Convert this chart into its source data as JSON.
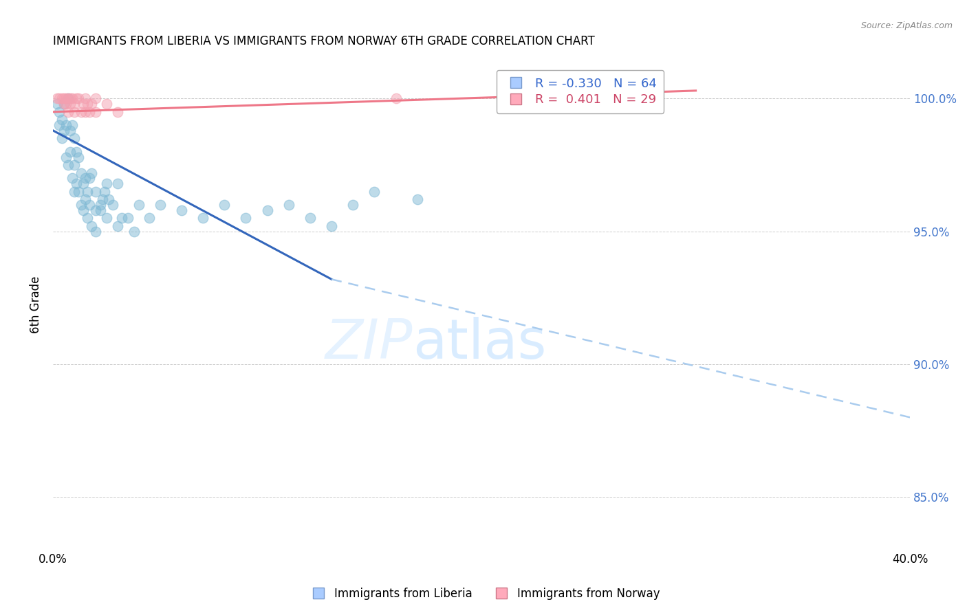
{
  "title": "IMMIGRANTS FROM LIBERIA VS IMMIGRANTS FROM NORWAY 6TH GRADE CORRELATION CHART",
  "source": "Source: ZipAtlas.com",
  "ylabel_left": "6th Grade",
  "xlim": [
    0.0,
    40.0
  ],
  "ylim": [
    83.0,
    101.5
  ],
  "yticks": [
    85.0,
    90.0,
    95.0,
    100.0
  ],
  "ytick_labels": [
    "85.0%",
    "90.0%",
    "95.0%",
    "100.0%"
  ],
  "xticks": [
    0.0,
    10.0,
    20.0,
    30.0,
    40.0
  ],
  "xtick_labels": [
    "0.0%",
    "",
    "",
    "",
    "40.0%"
  ],
  "liberia_color": "#7EB8D4",
  "norway_color": "#F4A0B0",
  "liberia_R": -0.33,
  "liberia_N": 64,
  "norway_R": 0.401,
  "norway_N": 29,
  "title_fontsize": 12,
  "axis_label_color": "#4477CC",
  "grid_color": "#CCCCCC",
  "legend_label_liberia": "Immigrants from Liberia",
  "legend_label_norway": "Immigrants from Norway",
  "liberia_scatter_x": [
    0.2,
    0.3,
    0.4,
    0.5,
    0.6,
    0.7,
    0.8,
    0.9,
    1.0,
    1.0,
    1.1,
    1.2,
    1.3,
    1.4,
    1.5,
    1.6,
    1.7,
    1.8,
    2.0,
    2.0,
    2.2,
    2.3,
    2.4,
    2.5,
    2.6,
    2.8,
    3.0,
    3.2,
    3.5,
    3.8,
    0.3,
    0.4,
    0.5,
    0.6,
    0.7,
    0.8,
    0.9,
    1.0,
    1.1,
    1.2,
    1.3,
    1.4,
    1.5,
    1.6,
    1.7,
    1.8,
    2.0,
    2.2,
    2.5,
    3.0,
    4.0,
    4.5,
    5.0,
    6.0,
    7.0,
    8.0,
    10.0,
    12.0,
    14.0,
    15.0,
    17.0,
    9.0,
    11.0,
    13.0
  ],
  "liberia_scatter_y": [
    99.8,
    99.5,
    99.2,
    99.8,
    99.0,
    100.0,
    98.8,
    99.0,
    98.5,
    97.5,
    98.0,
    97.8,
    97.2,
    96.8,
    97.0,
    96.5,
    97.0,
    97.2,
    96.5,
    95.8,
    96.0,
    96.2,
    96.5,
    96.8,
    96.2,
    96.0,
    96.8,
    95.5,
    95.5,
    95.0,
    99.0,
    98.5,
    98.8,
    97.8,
    97.5,
    98.0,
    97.0,
    96.5,
    96.8,
    96.5,
    96.0,
    95.8,
    96.2,
    95.5,
    96.0,
    95.2,
    95.0,
    95.8,
    95.5,
    95.2,
    96.0,
    95.5,
    96.0,
    95.8,
    95.5,
    96.0,
    95.8,
    95.5,
    96.0,
    96.5,
    96.2,
    95.5,
    96.0,
    95.2
  ],
  "norway_scatter_x": [
    0.2,
    0.3,
    0.4,
    0.5,
    0.5,
    0.6,
    0.7,
    0.7,
    0.8,
    0.8,
    0.9,
    1.0,
    1.0,
    1.1,
    1.2,
    1.3,
    1.4,
    1.5,
    1.5,
    1.6,
    1.7,
    1.8,
    2.0,
    2.0,
    2.5,
    3.0,
    16.0,
    27.0,
    0.6
  ],
  "norway_scatter_y": [
    100.0,
    100.0,
    100.0,
    100.0,
    99.8,
    100.0,
    100.0,
    99.5,
    99.8,
    100.0,
    100.0,
    99.5,
    99.8,
    100.0,
    100.0,
    99.5,
    99.8,
    99.5,
    100.0,
    99.8,
    99.5,
    99.8,
    99.5,
    100.0,
    99.8,
    99.5,
    100.0,
    100.0,
    99.8
  ],
  "liberia_trend_x0": 0.0,
  "liberia_trend_y0": 98.8,
  "liberia_trend_x1": 13.0,
  "liberia_trend_y1": 93.2,
  "liberia_dash_x0": 13.0,
  "liberia_dash_y0": 93.2,
  "liberia_dash_x1": 40.0,
  "liberia_dash_y1": 88.0,
  "norway_trend_x0": 0.0,
  "norway_trend_y0": 99.5,
  "norway_trend_x1": 30.0,
  "norway_trend_y1": 100.3,
  "liberia_trend_color": "#3366BB",
  "liberia_dash_color": "#AACCEE",
  "norway_trend_color": "#EE7788"
}
